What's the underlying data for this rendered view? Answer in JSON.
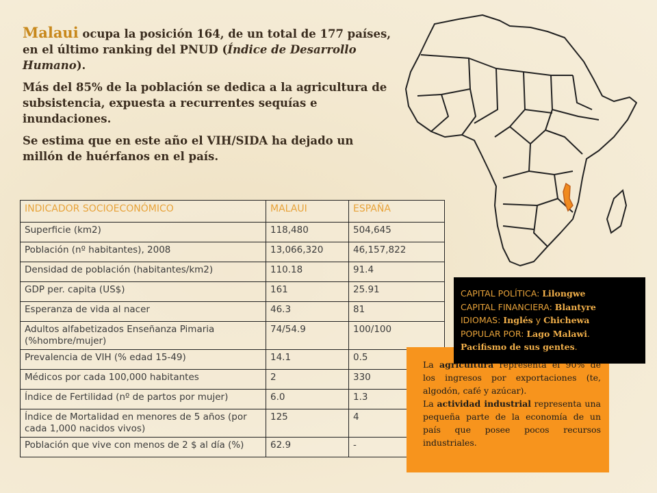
{
  "intro": {
    "p1": {
      "country": "Malaui",
      "text_a": " ocupa la posición 164, de un total de 177 países, en el último ranking del PNUD (",
      "italic": "Índice de Desarrollo Humano",
      "text_b": ")."
    },
    "p2": "Más del 85% de la población se dedica a la agricultura de subsistencia, expuesta a recurrentes sequías e inundaciones.",
    "p3": "Se estima que en este año el VIH/SIDA ha dejado un millón de huérfanos en el país."
  },
  "table": {
    "headers": [
      "INDICADOR SOCIOECONÓMICO",
      "MALAUI",
      "ESPAÑA"
    ],
    "rows": [
      [
        "Superficie (km2)",
        "118,480",
        "504,645"
      ],
      [
        "Población (nº habitantes), 2008",
        "13,066,320",
        "46,157,822"
      ],
      [
        "Densidad de población (habitantes/km2)",
        "110.18",
        "91.4"
      ],
      [
        "GDP per. capita (US$)",
        "161",
        "25.91"
      ],
      [
        "Esperanza de vida al nacer",
        "46.3",
        "81"
      ],
      [
        "Adultos alfabetizados Enseñanza Pimaria (%hombre/mujer)",
        "74/54.9",
        "100/100"
      ],
      [
        "Prevalencia de VIH (% edad 15-49)",
        "14.1",
        "0.5"
      ],
      [
        "Médicos por cada 100,000 habitantes",
        "2",
        "330"
      ],
      [
        "Índice de Fertilidad (nº de partos por mujer)",
        "6.0",
        "1.3"
      ],
      [
        "Índice de Mortalidad en menores de 5 años (por cada 1,000 nacidos vivos)",
        "125",
        "4"
      ],
      [
        "Población que vive con menos de 2 $ al día (%)",
        "62.9",
        "-"
      ]
    ]
  },
  "capital_box": {
    "l1_label": "CAPITAL POLÍTICA: ",
    "l1_value": "Lilongwe",
    "l2_label": "CAPITAL FINANCIERA: ",
    "l2_value": "Blantyre",
    "l3_label": "IDIOMAS: ",
    "l3_v1": "Inglés",
    "l3_mid": " y ",
    "l3_v2": "Chichewa",
    "l4_label": "POPULAR POR: ",
    "l4_value": "Lago Malawi",
    "l4_dot": ".",
    "l5_value": "Pacifismo de sus gentes",
    "l5_dot": "."
  },
  "agri_box": {
    "p1_a": "La ",
    "p1_bold": "agricultura",
    "p1_b": " representa el    90% de los ingresos por exportaciones (te, algodón, café y azúcar).",
    "p2_a": "La ",
    "p2_bold": "actividad industrial",
    "p2_b": " representa una pequeña parte de la economía de un país que posee pocos recursos industriales."
  },
  "colors": {
    "accent": "#e8a33a",
    "highlight_country": "#f08a1e",
    "agri_bg": "#f7941d"
  }
}
